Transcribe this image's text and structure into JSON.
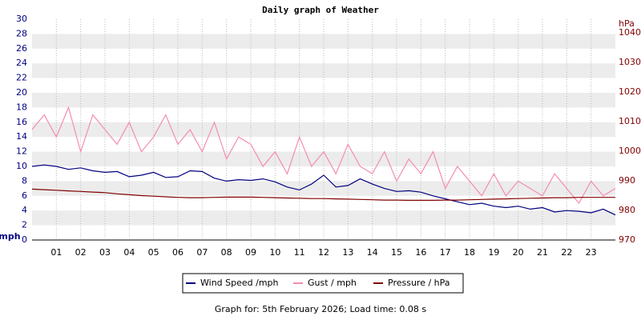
{
  "chart_data": {
    "type": "line",
    "title": "Daily graph of Weather",
    "y_label": "mph",
    "y2_label": "hPa",
    "x": [
      0,
      0.5,
      1,
      1.5,
      2,
      2.5,
      3,
      3.5,
      4,
      4.5,
      5,
      5.5,
      6,
      6.5,
      7,
      7.5,
      8,
      8.5,
      9,
      9.5,
      10,
      10.5,
      11,
      11.5,
      12,
      12.5,
      13,
      13.5,
      14,
      14.5,
      15,
      15.5,
      16,
      16.5,
      17,
      17.5,
      18,
      18.5,
      19,
      19.5,
      20,
      20.5,
      21,
      21.5,
      22,
      22.5,
      23,
      23.5,
      24
    ],
    "xlim": [
      0,
      24
    ],
    "xticks": [
      {
        "value": 1,
        "label": "01"
      },
      {
        "value": 2,
        "label": "02"
      },
      {
        "value": 3,
        "label": "03"
      },
      {
        "value": 4,
        "label": "04"
      },
      {
        "value": 5,
        "label": "05"
      },
      {
        "value": 6,
        "label": "06"
      },
      {
        "value": 7,
        "label": "07"
      },
      {
        "value": 8,
        "label": "08"
      },
      {
        "value": 9,
        "label": "09"
      },
      {
        "value": 10,
        "label": "10"
      },
      {
        "value": 11,
        "label": "11"
      },
      {
        "value": 12,
        "label": "12"
      },
      {
        "value": 13,
        "label": "13"
      },
      {
        "value": 14,
        "label": "14"
      },
      {
        "value": 15,
        "label": "15"
      },
      {
        "value": 16,
        "label": "16"
      },
      {
        "value": 17,
        "label": "17"
      },
      {
        "value": 18,
        "label": "18"
      },
      {
        "value": 19,
        "label": "19"
      },
      {
        "value": 20,
        "label": "20"
      },
      {
        "value": 21,
        "label": "21"
      },
      {
        "value": 22,
        "label": "22"
      },
      {
        "value": 23,
        "label": "23"
      }
    ],
    "ylim": [
      0,
      30
    ],
    "yticks": [
      0,
      2,
      4,
      6,
      8,
      10,
      12,
      14,
      16,
      18,
      20,
      22,
      24,
      26,
      28,
      30
    ],
    "y2lim": [
      970,
      1044.6
    ],
    "y2ticks": [
      970,
      980,
      990,
      1000,
      1010,
      1020,
      1030,
      1040
    ],
    "grid": true,
    "series": [
      {
        "name": "Wind Speed /mph",
        "color": "#000080",
        "values": [
          10,
          10.2,
          10,
          9.6,
          9.8,
          9.4,
          9.2,
          9.3,
          8.6,
          8.8,
          9.2,
          8.5,
          8.6,
          9.4,
          9.3,
          8.4,
          8,
          8.2,
          8.1,
          8.3,
          7.9,
          7.2,
          6.8,
          7.6,
          8.8,
          7.2,
          7.4,
          8.3,
          7.6,
          7,
          6.6,
          6.7,
          6.5,
          6,
          5.6,
          5.2,
          4.8,
          5,
          4.6,
          4.4,
          4.6,
          4.2,
          4.4,
          3.8,
          4,
          3.9,
          3.7,
          4.2,
          3.4
        ]
      },
      {
        "name": "Gust / mph",
        "color": "#f58cb4",
        "values": [
          15,
          17,
          14,
          18,
          12,
          17,
          15,
          13,
          16,
          12,
          14,
          17,
          13,
          15,
          12,
          16,
          11,
          14,
          13,
          10,
          12,
          9,
          14,
          10,
          12,
          9,
          13,
          10,
          9,
          12,
          8,
          11,
          9,
          12,
          7,
          10,
          8,
          6,
          9,
          6,
          8,
          7,
          6,
          9,
          7,
          5,
          8,
          6,
          7
        ]
      },
      {
        "name": "Pressure / hPa",
        "color": "#800000",
        "axis": "y2",
        "values": [
          987.2,
          987,
          986.8,
          986.6,
          986.4,
          986.2,
          986,
          985.6,
          985.3,
          985,
          984.8,
          984.6,
          984.4,
          984.3,
          984.3,
          984.4,
          984.5,
          984.5,
          984.5,
          984.4,
          984.3,
          984.2,
          984.1,
          984,
          984,
          983.9,
          983.8,
          983.7,
          983.6,
          983.5,
          983.5,
          983.4,
          983.4,
          983.4,
          983.5,
          983.5,
          983.6,
          983.7,
          983.8,
          983.9,
          984,
          984.1,
          984.2,
          984.3,
          984.3,
          984.4,
          984.4,
          984.4,
          984.4
        ]
      }
    ]
  },
  "footer": "Graph for: 5th February 2026; Load time: 0.08 s"
}
